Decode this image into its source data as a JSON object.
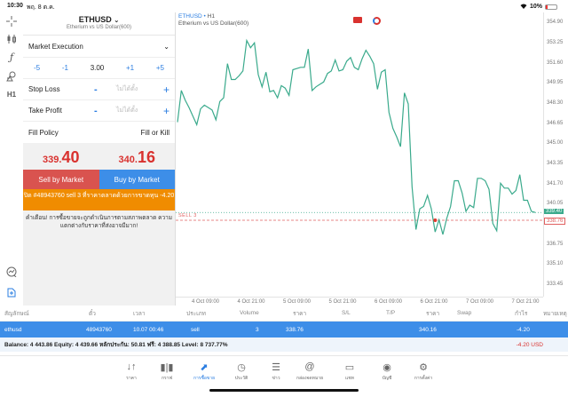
{
  "status_bar": {
    "time": "10:30",
    "date": "พฤ. 8 ต.ค.",
    "wifi": "wifi-icon",
    "battery": "10%"
  },
  "left_toolbar": {
    "items": [
      {
        "icon": "crosshair-icon",
        "glyph": "┼"
      },
      {
        "icon": "candlestick-icon",
        "glyph": "▮|▮"
      },
      {
        "icon": "function-icon",
        "glyph": "ƒ"
      },
      {
        "icon": "objects-icon",
        "glyph": "⌂"
      },
      {
        "icon": "timeframe-icon",
        "glyph": "H1"
      },
      {
        "icon": "trade-chart-icon",
        "glyph": "⊘"
      },
      {
        "icon": "new-order-icon",
        "glyph": "⊞"
      }
    ]
  },
  "order_panel": {
    "symbol": "ETHUSD",
    "symbol_desc": "Etherium vs US Dollar(600)",
    "execution_type": "Market Execution",
    "volume": {
      "minus5": "-5",
      "minus1": "-1",
      "value": "3.00",
      "plus1": "+1",
      "plus5": "+5"
    },
    "stop_loss": {
      "label": "Stop Loss",
      "minus": "-",
      "value": "ไม่ได้ตั้ง",
      "plus": "+"
    },
    "take_profit": {
      "label": "Take Profit",
      "minus": "-",
      "value": "ไม่ได้ตั้ง",
      "plus": "+"
    },
    "fill_policy": {
      "label": "Fill Policy",
      "value": "Fill or Kill"
    },
    "bid": {
      "small": "339.",
      "big": "40"
    },
    "ask": {
      "small": "340.",
      "big": "16"
    },
    "sell_button": "Sell by Market",
    "buy_button": "Buy by Market",
    "notice": "ปิด #48943760 sell 3 ที่ราคาตลาดด้วยการขาดทุน -4.20",
    "warning": "คำเตือน! การซื้อขายจะถูกดำเนินการตามสภาพตลาด ความแตกต่างกับราคาที่ส่งอาจมีมาก!"
  },
  "chart": {
    "symbol": "ETHUSD",
    "timeframe": "H1",
    "description": "Etherium vs US Dollar(600)",
    "current_price_tag": "339.40",
    "open_price_tag": "338.76",
    "order_line_label": "SELL 3",
    "colors": {
      "line": "#3aaa8c",
      "sell_line": "#e06060",
      "bid_line": "#3aaa8c"
    }
  },
  "chart_data": {
    "type": "line",
    "title": "ETHUSD • H1 — Etherium vs US Dollar(600)",
    "xlabel": "",
    "ylabel": "",
    "x_ticks": [
      "4 Oct 09:00",
      "4 Oct 21:00",
      "5 Oct 09:00",
      "5 Oct 21:00",
      "6 Oct 09:00",
      "6 Oct 21:00",
      "7 Oct 09:00",
      "7 Oct 21:00"
    ],
    "y_ticks": [
      "354.90",
      "353.25",
      "351.60",
      "349.95",
      "348.30",
      "346.65",
      "345.00",
      "343.35",
      "341.70",
      "340.05",
      "338.40",
      "336.75",
      "335.10",
      "333.45"
    ],
    "ylim": [
      332.5,
      355.8
    ],
    "grid": false,
    "series": [
      {
        "name": "ETHUSD close",
        "values": [
          346.8,
          349.4,
          348.6,
          348.0,
          347.3,
          346.6,
          347.9,
          348.2,
          348.0,
          347.8,
          347.0,
          348.5,
          348.8,
          351.6,
          350.3,
          350.3,
          350.6,
          351.0,
          353.5,
          352.9,
          353.3,
          350.7,
          349.7,
          350.9,
          349.3,
          349.4,
          348.8,
          349.8,
          349.6,
          349.0,
          351.1,
          351.2,
          351.3,
          351.3,
          352.8,
          349.4,
          349.7,
          349.9,
          350.1,
          350.8,
          351.0,
          351.9,
          351.0,
          351.1,
          351.8,
          352.1,
          351.3,
          351.1,
          352.0,
          352.7,
          352.2,
          351.6,
          349.5,
          350.9,
          351.1,
          347.6,
          346.3,
          345.6,
          344.8,
          349.2,
          348.3,
          341.5,
          338.0,
          339.7,
          339.9,
          340.8,
          339.7,
          337.8,
          338.8,
          337.6,
          338.9,
          339.9,
          342.0,
          342.0,
          341.0,
          339.5,
          340.0,
          339.8,
          342.2,
          342.2,
          342.0,
          341.3,
          338.5,
          337.9,
          341.8,
          341.4,
          341.4,
          340.9,
          341.2,
          342.5,
          340.4,
          340.4,
          339.5,
          339.4
        ]
      }
    ],
    "annotations": [
      {
        "label": "SELL 3",
        "price": 338.76
      },
      {
        "label": "bid",
        "price": 339.4
      }
    ]
  },
  "trades_table": {
    "headers": [
      "สัญลักษณ์",
      "ตั๋ว",
      "เวลา",
      "ประเภท",
      "Volume",
      "ราคา",
      "S/L",
      "T/P",
      "ราคา",
      "Swap",
      "กำไร",
      "หมายเหตุ"
    ],
    "rows": [
      [
        "ethusd",
        "48943760",
        "10.07 00:46",
        "sell",
        "3",
        "338.76",
        "",
        "",
        "340.16",
        "",
        "-4.20",
        ""
      ]
    ],
    "summary": "Balance: 4 443.86 Equity: 4 439.66 หลักประกัน: 50.81 ฟรี: 4 388.85 Level: 8 737.77%",
    "total": "-4.20  USD"
  },
  "tab_bar": {
    "items": [
      {
        "label": "ราคา",
        "icon": "quotes-icon",
        "glyph": "↓↑"
      },
      {
        "label": "กราฟ",
        "icon": "chart-icon",
        "glyph": "▮|▮"
      },
      {
        "label": "การซื้อขาย",
        "icon": "trade-icon",
        "glyph": "⬈",
        "active": true
      },
      {
        "label": "ประวัติ",
        "icon": "history-icon",
        "glyph": "◷"
      },
      {
        "label": "ข่าว",
        "icon": "news-icon",
        "glyph": "☰"
      },
      {
        "label": "กล่องจดหมาย",
        "icon": "mailbox-icon",
        "glyph": "@"
      },
      {
        "label": "แชท",
        "icon": "chat-icon",
        "glyph": "▭"
      },
      {
        "label": "บัญชี",
        "icon": "account-icon",
        "glyph": "◉"
      },
      {
        "label": "การตั้งค่า",
        "icon": "settings-icon",
        "glyph": "⚙"
      }
    ]
  }
}
